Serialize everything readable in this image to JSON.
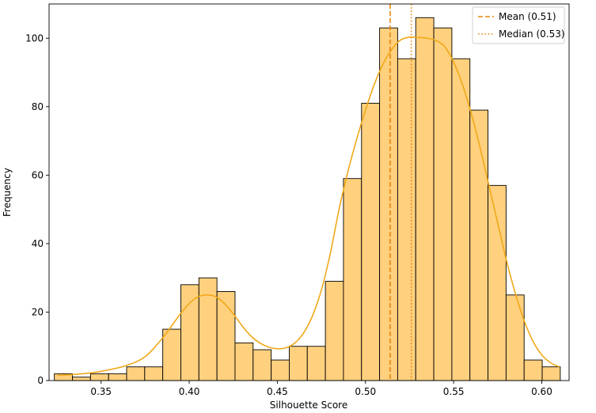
{
  "chart_data": {
    "type": "histogram",
    "title": "",
    "xlabel": "Silhouette Score",
    "ylabel": "Frequency",
    "xlim": [
      0.3205,
      0.6155
    ],
    "ylim": [
      0,
      110
    ],
    "x_ticks": [
      0.35,
      0.4,
      0.45,
      0.5,
      0.55,
      0.6
    ],
    "x_tick_labels": [
      "0.35",
      "0.40",
      "0.45",
      "0.50",
      "0.55",
      "0.60"
    ],
    "y_ticks": [
      0,
      20,
      40,
      60,
      80,
      100
    ],
    "y_tick_labels": [
      "0",
      "20",
      "40",
      "60",
      "80",
      "100"
    ],
    "bins": {
      "start": 0.3235,
      "width": 0.01025,
      "counts": [
        2,
        1,
        2,
        2,
        4,
        4,
        15,
        28,
        30,
        26,
        11,
        9,
        6,
        10,
        10,
        29,
        59,
        81,
        103,
        94,
        106,
        103,
        94,
        79,
        57,
        25,
        6,
        4
      ]
    },
    "kde": {
      "x": [
        0.325,
        0.335,
        0.345,
        0.355,
        0.365,
        0.375,
        0.385,
        0.395,
        0.4,
        0.405,
        0.41,
        0.415,
        0.42,
        0.425,
        0.43,
        0.435,
        0.44,
        0.445,
        0.45,
        0.455,
        0.46,
        0.465,
        0.47,
        0.475,
        0.48,
        0.485,
        0.49,
        0.495,
        0.5,
        0.505,
        0.51,
        0.515,
        0.52,
        0.525,
        0.53,
        0.535,
        0.54,
        0.545,
        0.55,
        0.555,
        0.56,
        0.565,
        0.57,
        0.575,
        0.58,
        0.585,
        0.59,
        0.595,
        0.6,
        0.605,
        0.61
      ],
      "y": [
        1.5,
        1.8,
        2.3,
        3.2,
        4.5,
        7.0,
        12.5,
        19.5,
        22.5,
        24.5,
        25.0,
        24.5,
        22.5,
        19.5,
        16.0,
        13.0,
        11.0,
        9.8,
        9.3,
        9.6,
        11.0,
        14.0,
        19.0,
        26.5,
        37.0,
        50.0,
        61.0,
        70.5,
        79.0,
        86.5,
        92.5,
        96.8,
        99.5,
        100.3,
        100.2,
        100.0,
        99.3,
        97.5,
        93.0,
        86.5,
        78.0,
        68.0,
        57.0,
        46.0,
        35.0,
        25.5,
        17.5,
        11.5,
        7.5,
        5.2,
        4.0
      ]
    },
    "reference_lines": [
      {
        "label": "Mean (0.51)",
        "value": 0.514,
        "style": "dashed",
        "color": "#e8870e"
      },
      {
        "label": "Median (0.53)",
        "value": 0.526,
        "style": "dotted",
        "color": "#e8870e"
      }
    ],
    "legend": {
      "placement": "top-right"
    },
    "colors": {
      "bar_fill": "#ffd07e",
      "bar_edge": "#000000",
      "kde_line": "#f0a818",
      "ref_line": "#e8870e"
    },
    "grid": false
  }
}
